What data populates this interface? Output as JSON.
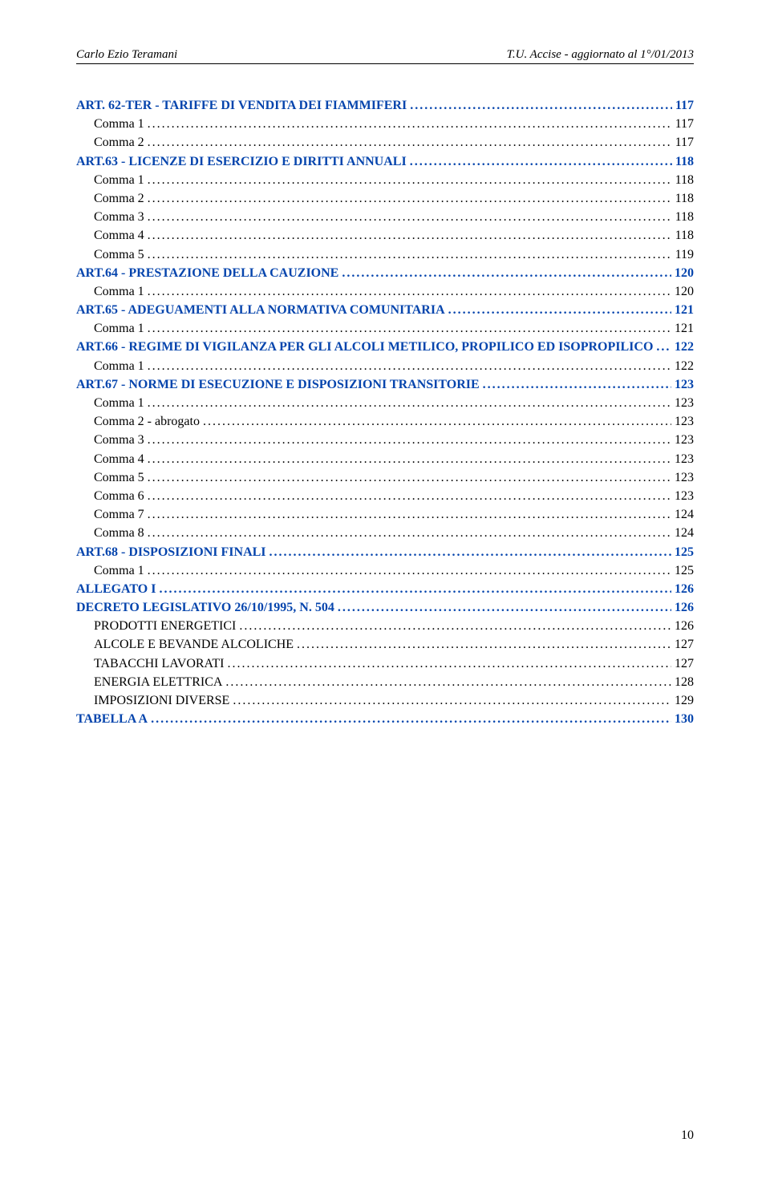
{
  "header": {
    "left": "Carlo Ezio Teramani",
    "right": "T.U. Accise - aggiornato al 1°/01/2013"
  },
  "pagenum": "10",
  "toc": [
    {
      "label": "ART. 62-TER  -  TARIFFE DI VENDITA DEI FIAMMIFERI",
      "page": "117",
      "indent": 0,
      "bold": true,
      "blue": true,
      "dotsColor": "#0645ad",
      "pageBlue": true,
      "pageBold": true
    },
    {
      "label": "Comma 1",
      "page": "117",
      "indent": 1,
      "bold": false,
      "blue": false,
      "dotsColor": "#000",
      "pageBlue": false,
      "pageBold": false
    },
    {
      "label": "Comma 2",
      "page": "117",
      "indent": 1,
      "bold": false,
      "blue": false,
      "dotsColor": "#000",
      "pageBlue": false,
      "pageBold": false
    },
    {
      "label": "ART.63 -  LICENZE DI ESERCIZIO E DIRITTI ANNUALI",
      "page": "118",
      "indent": 0,
      "bold": true,
      "blue": true,
      "dotsColor": "#0645ad",
      "pageBlue": true,
      "pageBold": true
    },
    {
      "label": "Comma 1",
      "page": "118",
      "indent": 1,
      "bold": false,
      "blue": false,
      "dotsColor": "#000",
      "pageBlue": false,
      "pageBold": false
    },
    {
      "label": "Comma 2",
      "page": "118",
      "indent": 1,
      "bold": false,
      "blue": false,
      "dotsColor": "#000",
      "pageBlue": false,
      "pageBold": false
    },
    {
      "label": "Comma 3",
      "page": "118",
      "indent": 1,
      "bold": false,
      "blue": false,
      "dotsColor": "#000",
      "pageBlue": false,
      "pageBold": false
    },
    {
      "label": "Comma 4",
      "page": "118",
      "indent": 1,
      "bold": false,
      "blue": false,
      "dotsColor": "#000",
      "pageBlue": false,
      "pageBold": false
    },
    {
      "label": "Comma 5",
      "page": "119",
      "indent": 1,
      "bold": false,
      "blue": false,
      "dotsColor": "#000",
      "pageBlue": false,
      "pageBold": false
    },
    {
      "label": "ART.64 - PRESTAZIONE DELLA CAUZIONE",
      "page": "120",
      "indent": 0,
      "bold": true,
      "blue": true,
      "dotsColor": "#0645ad",
      "pageBlue": true,
      "pageBold": true
    },
    {
      "label": "Comma 1",
      "page": "120",
      "indent": 1,
      "bold": false,
      "blue": false,
      "dotsColor": "#000",
      "pageBlue": false,
      "pageBold": false
    },
    {
      "label": "ART.65 - ADEGUAMENTI ALLA NORMATIVA COMUNITARIA",
      "page": "121",
      "indent": 0,
      "bold": true,
      "blue": true,
      "dotsColor": "#0645ad",
      "pageBlue": true,
      "pageBold": true
    },
    {
      "label": "Comma 1",
      "page": "121",
      "indent": 1,
      "bold": false,
      "blue": false,
      "dotsColor": "#000",
      "pageBlue": false,
      "pageBold": false
    },
    {
      "label": "ART.66 - REGIME DI VIGILANZA PER GLI ALCOLI METILICO, PROPILICO ED  ISOPROPILICO",
      "page": "122",
      "indent": 0,
      "bold": true,
      "blue": true,
      "dotsColor": "#0645ad",
      "pageBlue": true,
      "pageBold": true
    },
    {
      "label": "Comma 1",
      "page": "122",
      "indent": 1,
      "bold": false,
      "blue": false,
      "dotsColor": "#000",
      "pageBlue": false,
      "pageBold": false
    },
    {
      "label": "ART.67 - NORME DI ESECUZIONE E DISPOSIZIONI TRANSITORIE",
      "page": "123",
      "indent": 0,
      "bold": true,
      "blue": true,
      "dotsColor": "#0645ad",
      "pageBlue": true,
      "pageBold": true
    },
    {
      "label": "Comma 1",
      "page": "123",
      "indent": 1,
      "bold": false,
      "blue": false,
      "dotsColor": "#000",
      "pageBlue": false,
      "pageBold": false
    },
    {
      "label": "Comma 2 - abrogato",
      "page": "123",
      "indent": 1,
      "bold": false,
      "blue": false,
      "dotsColor": "#000",
      "pageBlue": false,
      "pageBold": false
    },
    {
      "label": "Comma 3",
      "page": "123",
      "indent": 1,
      "bold": false,
      "blue": false,
      "dotsColor": "#000",
      "pageBlue": false,
      "pageBold": false
    },
    {
      "label": "Comma 4",
      "page": "123",
      "indent": 1,
      "bold": false,
      "blue": false,
      "dotsColor": "#000",
      "pageBlue": false,
      "pageBold": false
    },
    {
      "label": "Comma 5",
      "page": "123",
      "indent": 1,
      "bold": false,
      "blue": false,
      "dotsColor": "#000",
      "pageBlue": false,
      "pageBold": false
    },
    {
      "label": "Comma 6",
      "page": "123",
      "indent": 1,
      "bold": false,
      "blue": false,
      "dotsColor": "#000",
      "pageBlue": false,
      "pageBold": false
    },
    {
      "label": "Comma 7",
      "page": "124",
      "indent": 1,
      "bold": false,
      "blue": false,
      "dotsColor": "#000",
      "pageBlue": false,
      "pageBold": false
    },
    {
      "label": "Comma 8",
      "page": "124",
      "indent": 1,
      "bold": false,
      "blue": false,
      "dotsColor": "#000",
      "pageBlue": false,
      "pageBold": false
    },
    {
      "label": "ART.68  -  DISPOSIZIONI FINALI",
      "page": "125",
      "indent": 0,
      "bold": true,
      "blue": true,
      "dotsColor": "#0645ad",
      "pageBlue": true,
      "pageBold": true
    },
    {
      "label": "Comma 1",
      "page": "125",
      "indent": 1,
      "bold": false,
      "blue": false,
      "dotsColor": "#000",
      "pageBlue": false,
      "pageBold": false
    },
    {
      "label": "ALLEGATO  I",
      "page": "126",
      "indent": 0,
      "bold": true,
      "blue": true,
      "dotsColor": "#0645ad",
      "pageBlue": true,
      "pageBold": true
    },
    {
      "label": "DECRETO LEGISLATIVO 26/10/1995, N. 504",
      "page": "126",
      "indent": 0,
      "bold": true,
      "blue": true,
      "dotsColor": "#0645ad",
      "pageBlue": true,
      "pageBold": true
    },
    {
      "label": "PRODOTTI ENERGETICI",
      "page": "126",
      "indent": 1,
      "bold": false,
      "blue": false,
      "dotsColor": "#000",
      "pageBlue": false,
      "pageBold": false
    },
    {
      "label": "ALCOLE E BEVANDE ALCOLICHE",
      "page": "127",
      "indent": 1,
      "bold": false,
      "blue": false,
      "dotsColor": "#000",
      "pageBlue": false,
      "pageBold": false
    },
    {
      "label": "TABACCHI LAVORATI",
      "page": "127",
      "indent": 1,
      "bold": false,
      "blue": false,
      "dotsColor": "#000",
      "pageBlue": false,
      "pageBold": false
    },
    {
      "label": "ENERGIA ELETTRICA",
      "page": "128",
      "indent": 1,
      "bold": false,
      "blue": false,
      "dotsColor": "#000",
      "pageBlue": false,
      "pageBold": false
    },
    {
      "label": "IMPOSIZIONI DIVERSE",
      "page": "129",
      "indent": 1,
      "bold": false,
      "blue": false,
      "dotsColor": "#000",
      "pageBlue": false,
      "pageBold": false
    },
    {
      "label": "TABELLA  A",
      "page": "130",
      "indent": 0,
      "bold": true,
      "blue": true,
      "dotsColor": "#0645ad",
      "pageBlue": true,
      "pageBold": true
    }
  ]
}
